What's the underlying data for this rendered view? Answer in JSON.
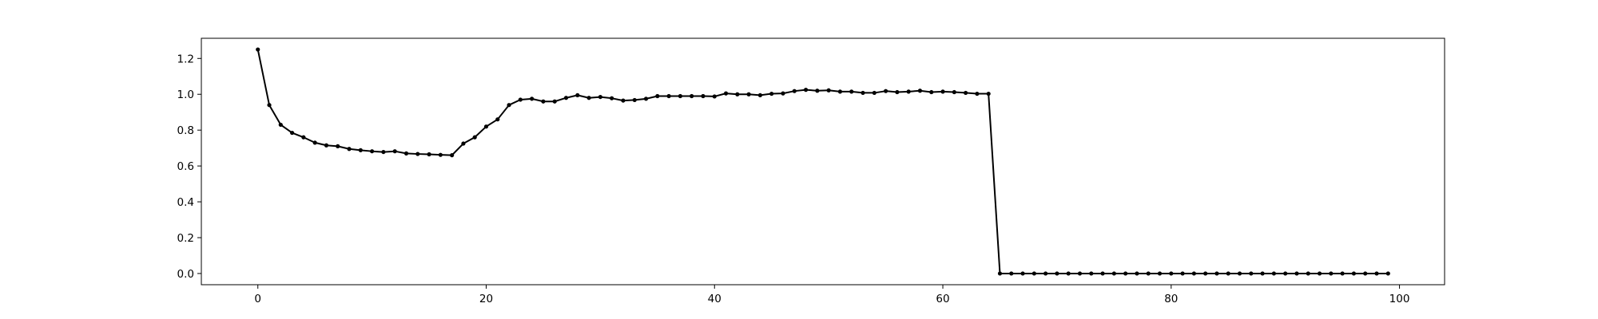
{
  "chart_data": {
    "type": "line",
    "title": "",
    "xlabel": "",
    "ylabel": "",
    "xlim": [
      -4.95,
      103.95
    ],
    "ylim": [
      -0.0625,
      1.3125
    ],
    "grid": false,
    "legend": "none",
    "x_ticks": [
      0,
      20,
      40,
      60,
      80,
      100
    ],
    "x_tick_labels": [
      "0",
      "20",
      "40",
      "60",
      "80",
      "100"
    ],
    "y_ticks": [
      0.0,
      0.2,
      0.4,
      0.6,
      0.8,
      1.0,
      1.2
    ],
    "y_tick_labels": [
      "0.0",
      "0.2",
      "0.4",
      "0.6",
      "0.8",
      "1.0",
      "1.2"
    ],
    "colors": {
      "line": "#000000",
      "marker": "#000000"
    },
    "series": [
      {
        "x": [
          0,
          1,
          2,
          3,
          4,
          5,
          6,
          7,
          8,
          9,
          10,
          11,
          12,
          13,
          14,
          15,
          16,
          17,
          18,
          19,
          20,
          21,
          22,
          23,
          24,
          25,
          26,
          27,
          28,
          29,
          30,
          31,
          32,
          33,
          34,
          35,
          36,
          37,
          38,
          39,
          40,
          41,
          42,
          43,
          44,
          45,
          46,
          47,
          48,
          49,
          50,
          51,
          52,
          53,
          54,
          55,
          56,
          57,
          58,
          59,
          60,
          61,
          62,
          63,
          64,
          65,
          66,
          67,
          68,
          69,
          70,
          71,
          72,
          73,
          74,
          75,
          76,
          77,
          78,
          79,
          80,
          81,
          82,
          83,
          84,
          85,
          86,
          87,
          88,
          89,
          90,
          91,
          92,
          93,
          94,
          95,
          96,
          97,
          98,
          99
        ],
        "values": [
          1.25,
          0.94,
          0.83,
          0.785,
          0.76,
          0.73,
          0.715,
          0.71,
          0.695,
          0.688,
          0.682,
          0.678,
          0.682,
          0.67,
          0.667,
          0.665,
          0.662,
          0.66,
          0.725,
          0.76,
          0.82,
          0.86,
          0.94,
          0.97,
          0.975,
          0.96,
          0.96,
          0.98,
          0.995,
          0.98,
          0.985,
          0.978,
          0.965,
          0.968,
          0.975,
          0.99,
          0.99,
          0.99,
          0.99,
          0.99,
          0.988,
          1.005,
          1.0,
          1.0,
          0.995,
          1.003,
          1.005,
          1.018,
          1.025,
          1.02,
          1.022,
          1.015,
          1.015,
          1.008,
          1.008,
          1.018,
          1.012,
          1.015,
          1.02,
          1.012,
          1.015,
          1.012,
          1.008,
          1.003,
          1.003,
          0.0,
          0.0,
          0.0,
          0.0,
          0.0,
          0.0,
          0.0,
          0.0,
          0.0,
          0.0,
          0.0,
          0.0,
          0.0,
          0.0,
          0.0,
          0.0,
          0.0,
          0.0,
          0.0,
          0.0,
          0.0,
          0.0,
          0.0,
          0.0,
          0.0,
          0.0,
          0.0,
          0.0,
          0.0,
          0.0,
          0.0,
          0.0,
          0.0,
          0.0,
          0.0
        ]
      }
    ]
  }
}
